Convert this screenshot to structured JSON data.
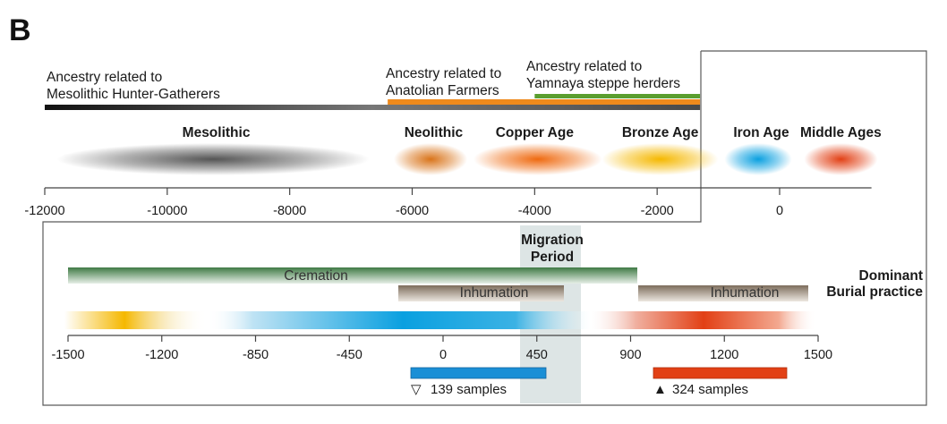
{
  "panel_label": "B",
  "ancestry": {
    "hunter_gatherers": {
      "line1": "Ancestry related to",
      "line2": "Mesolithic Hunter-Gatherers",
      "color": "#2a2a2a",
      "from": -12000,
      "to": -1300
    },
    "anatolian": {
      "line1": "Ancestry related to",
      "line2": "Anatolian Farmers",
      "color": "#ef8a1c",
      "from": -6400,
      "to": -1300
    },
    "yamnaya": {
      "line1": "Ancestry related to",
      "line2": "Yamnaya steppe herders",
      "color": "#5a9e2f",
      "from": -4000,
      "to": -1300
    }
  },
  "top_axis": {
    "min": -12000,
    "max": 1500,
    "tick_values": [
      -12000,
      -10000,
      -8000,
      -6000,
      -4000,
      -2000,
      0
    ],
    "tick_labels": [
      "-12000",
      "-10000",
      "-8000",
      "-6000",
      "-4000",
      "-2000",
      "0"
    ]
  },
  "periods": [
    {
      "label": "Mesolithic",
      "from": -11800,
      "to": -6700,
      "center": -9200,
      "color": "#555555"
    },
    {
      "label": "Neolithic",
      "from": -6300,
      "to": -5100,
      "center": -5650,
      "color": "#d9741a"
    },
    {
      "label": "Copper Age",
      "from": -5000,
      "to": -2900,
      "center": -4000,
      "color": "#ef6a10"
    },
    {
      "label": "Bronze Age",
      "from": -2900,
      "to": -1000,
      "center": -1950,
      "color": "#f5b800"
    },
    {
      "label": "Iron Age",
      "from": -900,
      "to": 200,
      "center": -300,
      "color": "#0aa0e0"
    },
    {
      "label": "Middle Ages",
      "from": 400,
      "to": 1600,
      "center": 1000,
      "color": "#e24015"
    }
  ],
  "bottom_axis": {
    "tick_labels": [
      "-1500",
      "-1200",
      "-850",
      "-450",
      "0",
      "450",
      "900",
      "1200",
      "1500"
    ]
  },
  "migration_period": {
    "line1": "Migration",
    "line2": "Period",
    "color": "#dde5e5"
  },
  "burial": {
    "title_line1": "Dominant",
    "title_line2": "Burial practice",
    "cremation": {
      "label": "Cremation",
      "color": "#3f7a45"
    },
    "inhumation_1": {
      "label": "Inhumation",
      "color": "#8a7a68"
    },
    "inhumation_2": {
      "label": "Inhumation",
      "color": "#8a7a68"
    }
  },
  "bottom_gradient": {
    "colors": [
      "#f5b800",
      "#0aa0e0",
      "#e24015"
    ]
  },
  "samples": {
    "first": {
      "symbol": "▽",
      "text": "139 samples",
      "color": "#1a8fd6"
    },
    "second": {
      "symbol": "▲",
      "text": "324 samples",
      "color": "#e24015"
    }
  }
}
